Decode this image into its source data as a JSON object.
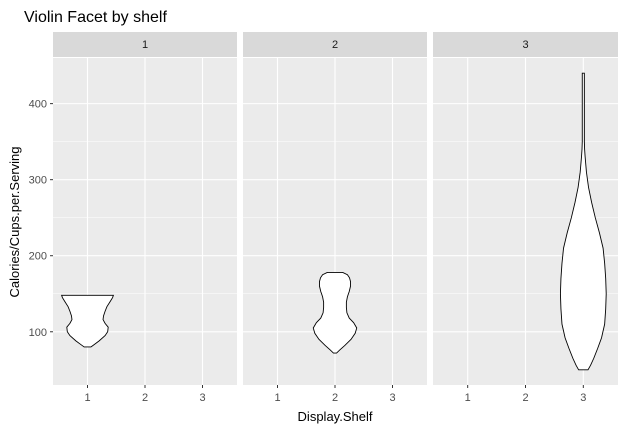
{
  "chart_data": {
    "type": "violin",
    "title": "Violin Facet by shelf",
    "xlabel": "Display.Shelf",
    "ylabel": "Calories/Cups.per.Serving",
    "ylim": [
      30,
      460
    ],
    "yticks": [
      100,
      200,
      300,
      400
    ],
    "categories": [
      "1",
      "2",
      "3"
    ],
    "grid": true,
    "colors": {
      "panel_bg": "#EBEBEB",
      "strip_bg": "#D9D9D9",
      "grid_major": "#FFFFFF",
      "violin_fill": "#FFFFFF",
      "violin_stroke": "#000000"
    },
    "facets": [
      {
        "label": "1",
        "violins": [
          {
            "shelf": "1",
            "profile": [
              [
                80,
                0.13
              ],
              [
                83,
                0.25
              ],
              [
                88,
                0.45
              ],
              [
                95,
                0.68
              ],
              [
                100,
                0.78
              ],
              [
                106,
                0.8
              ],
              [
                111,
                0.68
              ],
              [
                116,
                0.6
              ],
              [
                121,
                0.62
              ],
              [
                127,
                0.68
              ],
              [
                133,
                0.75
              ],
              [
                140,
                0.88
              ],
              [
                145,
                0.97
              ],
              [
                148,
                1.0
              ]
            ]
          }
        ]
      },
      {
        "label": "2",
        "violins": [
          {
            "shelf": "2",
            "profile": [
              [
                72,
                0.06
              ],
              [
                76,
                0.18
              ],
              [
                82,
                0.38
              ],
              [
                90,
                0.62
              ],
              [
                98,
                0.78
              ],
              [
                105,
                0.84
              ],
              [
                112,
                0.72
              ],
              [
                118,
                0.55
              ],
              [
                125,
                0.46
              ],
              [
                132,
                0.44
              ],
              [
                139,
                0.44
              ],
              [
                146,
                0.48
              ],
              [
                153,
                0.55
              ],
              [
                160,
                0.6
              ],
              [
                166,
                0.6
              ],
              [
                171,
                0.56
              ],
              [
                175,
                0.48
              ],
              [
                178,
                0.3
              ]
            ]
          }
        ]
      },
      {
        "label": "3",
        "violins": [
          {
            "shelf": "3",
            "profile": [
              [
                50,
                0.18
              ],
              [
                56,
                0.28
              ],
              [
                65,
                0.4
              ],
              [
                78,
                0.55
              ],
              [
                92,
                0.7
              ],
              [
                110,
                0.82
              ],
              [
                130,
                0.86
              ],
              [
                150,
                0.88
              ],
              [
                170,
                0.86
              ],
              [
                190,
                0.82
              ],
              [
                210,
                0.76
              ],
              [
                230,
                0.62
              ],
              [
                250,
                0.46
              ],
              [
                270,
                0.32
              ],
              [
                290,
                0.2
              ],
              [
                310,
                0.12
              ],
              [
                330,
                0.07
              ],
              [
                340,
                0.05
              ],
              [
                350,
                0.04
              ],
              [
                380,
                0.04
              ],
              [
                410,
                0.04
              ],
              [
                440,
                0.04
              ]
            ]
          }
        ]
      }
    ]
  }
}
